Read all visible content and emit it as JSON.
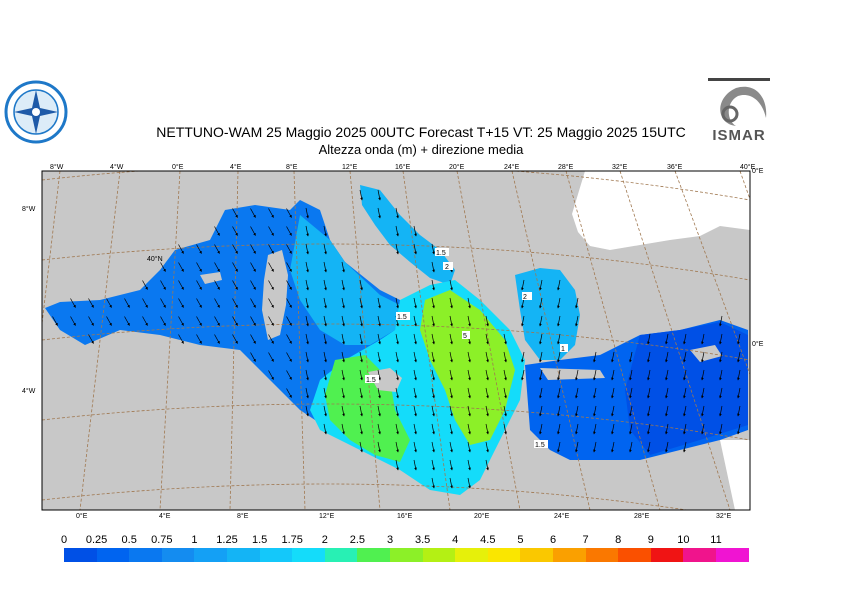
{
  "title_line1": "NETTUNO-WAM  25   Maggio  2025 00UTC Forecast T+15 VT: 25   Maggio  2025 15UTC",
  "title_line2": "Altezza onda (m) + direzione media",
  "logo_right_text": "ISMAR",
  "top_ticks": [
    "8°W",
    "4°W",
    "0°E",
    "4°E",
    "8°E",
    "12°E",
    "16°E",
    "20°E",
    "24°E",
    "28°E",
    "32°E",
    "36°E",
    "40°E"
  ],
  "top_right_tick": "0°E",
  "bottom_ticks": [
    "0°E",
    "4°E",
    "8°E",
    "12°E",
    "16°E",
    "20°E",
    "24°E",
    "28°E",
    "32°E"
  ],
  "left_ticks": [
    "8°W",
    "4°W"
  ],
  "right_tick": "0°E",
  "lat_label": "40°N",
  "scale": {
    "labels": [
      "0",
      "0.25",
      "0.5",
      "0.75",
      "1",
      "1.25",
      "1.5",
      "1.75",
      "2",
      "2.5",
      "3",
      "3.5",
      "4",
      "4.5",
      "5",
      "6",
      "7",
      "8",
      "9",
      "10",
      "11"
    ],
    "colors": [
      "#0050e6",
      "#0064f0",
      "#0a78f0",
      "#148cf0",
      "#14a0f5",
      "#14b4f5",
      "#14c8fa",
      "#14dcfa",
      "#28f0b4",
      "#50f050",
      "#8cf028",
      "#b4f014",
      "#e6f00a",
      "#fae600",
      "#fac800",
      "#faa000",
      "#fa7800",
      "#fa5000",
      "#f01414",
      "#f0148c",
      "#f014d2"
    ]
  },
  "contour_labels": [
    "1.5",
    "2",
    "5",
    "1.5",
    "1.5",
    "1",
    "1.5",
    "2"
  ]
}
